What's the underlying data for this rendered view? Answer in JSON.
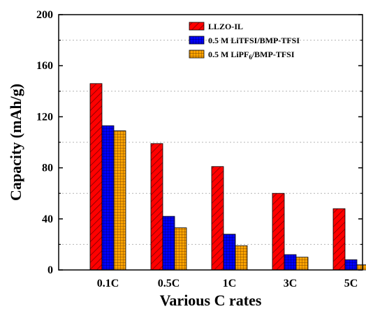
{
  "chart_data": {
    "type": "bar",
    "xlabel": "Various C rates",
    "ylabel": "Capacity (mAh/g)",
    "categories": [
      "0.1C",
      "0.5C",
      "1C",
      "3C",
      "5C"
    ],
    "ylim": [
      0,
      200
    ],
    "yticks": [
      0,
      40,
      80,
      120,
      160,
      200
    ],
    "grid": "horizontal dashed at minor ticks",
    "legend_position": "top-right",
    "series": [
      {
        "name": "LLZO-IL",
        "values": [
          146,
          99,
          81,
          60,
          48
        ],
        "color": "#ff0000",
        "pattern": "diagonal-hatch"
      },
      {
        "name": "0.5 M LiTFSI/BMP-TFSI",
        "values": [
          113,
          42,
          28,
          12,
          8
        ],
        "color": "#0000ff",
        "pattern": "grid"
      },
      {
        "name": "0.5 M LiPF6/BMP-TFSI",
        "values": [
          109,
          33,
          19,
          10,
          4
        ],
        "color": "#ffa500",
        "pattern": "grid"
      }
    ]
  }
}
